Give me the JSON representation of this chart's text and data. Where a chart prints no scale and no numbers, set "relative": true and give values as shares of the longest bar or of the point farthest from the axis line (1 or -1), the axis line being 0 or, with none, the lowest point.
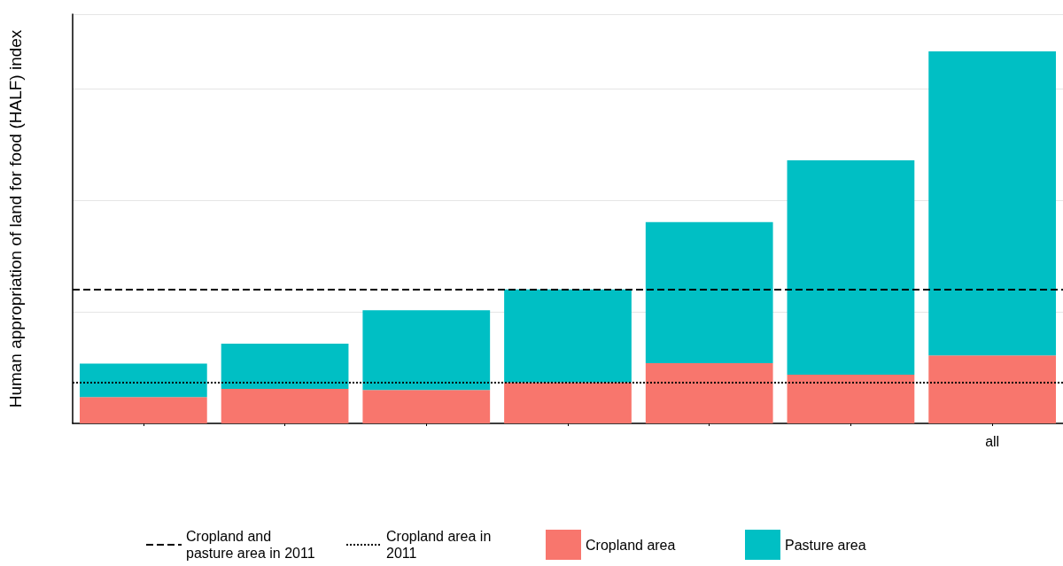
{
  "chart_data": {
    "type": "bar",
    "ylabel": "Human appropriation of land for food (HALF) index",
    "relative": true,
    "stacked": true,
    "categories": [
      null,
      null,
      null,
      null,
      null,
      null,
      "all"
    ],
    "series": [
      {
        "name": "Cropland area",
        "color": "#f8766d",
        "values": [
          0.071,
          0.093,
          0.09,
          0.11,
          0.162,
          0.131,
          0.183
        ]
      },
      {
        "name": "Pasture area",
        "color": "#00bfc4",
        "values": [
          0.09,
          0.121,
          0.214,
          0.25,
          0.379,
          0.576,
          0.817
        ]
      }
    ],
    "ref_lines": [
      {
        "axis": "y",
        "value": 0.36,
        "label": "Cropland and pasture area in 2011",
        "line_style": "dashed",
        "color": "#000000"
      },
      {
        "axis": "y",
        "value": 0.11,
        "label": "Cropland area in 2011",
        "line_style": "dotted",
        "color": "#000000"
      }
    ],
    "grid": "y",
    "legend": "bottom"
  }
}
